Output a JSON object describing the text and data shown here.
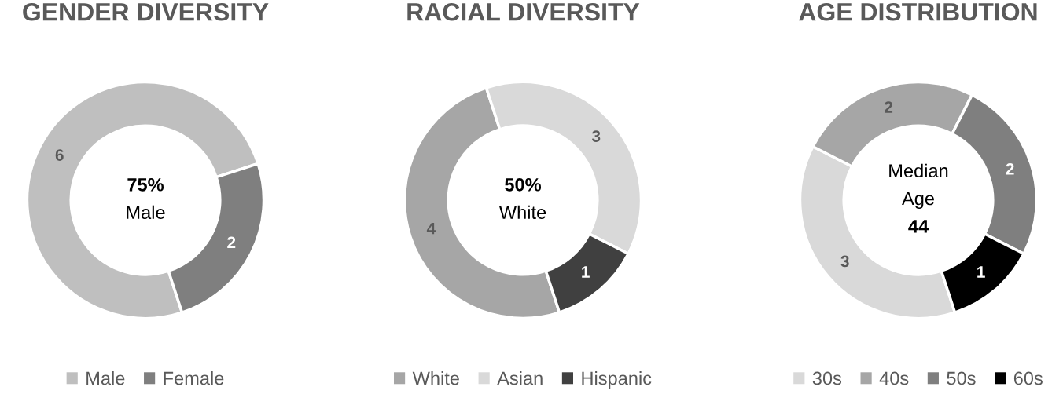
{
  "chart_data": [
    {
      "type": "donut",
      "title": "GENDER DIVERSITY",
      "categories": [
        "Male",
        "Female"
      ],
      "values": [
        6,
        2
      ],
      "colors": [
        "#bfbfbf",
        "#7f7f7f"
      ],
      "data_labels": true,
      "legend": "bottom",
      "annotations": [
        "75%",
        "Male"
      ]
    },
    {
      "type": "donut",
      "title": "RACIAL DIVERSITY",
      "categories": [
        "White",
        "Asian",
        "Hispanic"
      ],
      "values": [
        4,
        3,
        1
      ],
      "colors": [
        "#a6a6a6",
        "#d9d9d9",
        "#404040"
      ],
      "data_labels": true,
      "legend": "bottom",
      "annotations": [
        "50%",
        "White"
      ]
    },
    {
      "type": "donut",
      "title": "AGE DISTRIBUTION",
      "categories": [
        "30s",
        "40s",
        "50s",
        "60s"
      ],
      "values": [
        3,
        2,
        2,
        1
      ],
      "colors": [
        "#d9d9d9",
        "#a6a6a6",
        "#7f7f7f",
        "#000000"
      ],
      "data_labels": true,
      "legend": "bottom",
      "annotations": [
        "Median",
        "Age",
        "44"
      ]
    }
  ]
}
